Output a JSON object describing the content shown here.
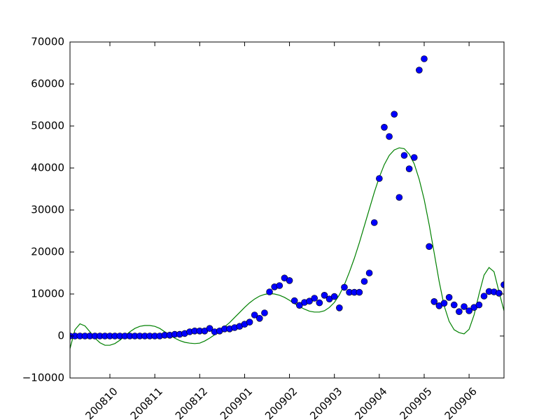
{
  "chart_data": {
    "type": "scatter",
    "x": [
      0,
      1,
      2,
      3,
      4,
      5,
      6,
      7,
      8,
      9,
      10,
      11,
      12,
      13,
      14,
      15,
      16,
      17,
      18,
      19,
      20,
      21,
      22,
      23,
      24,
      25,
      26,
      27,
      28,
      29,
      30,
      31,
      32,
      33,
      34,
      35,
      36,
      37,
      38,
      39,
      40,
      41,
      42,
      43,
      44,
      45,
      46,
      47,
      48,
      49,
      50,
      51,
      52,
      53,
      54,
      55,
      56,
      57,
      58,
      59,
      60,
      61,
      62,
      63,
      64,
      65,
      66,
      67,
      68,
      69,
      70,
      71,
      72,
      73,
      74,
      75,
      76,
      77,
      78,
      79,
      80,
      81,
      82,
      83,
      84,
      85,
      86,
      87
    ],
    "series": [
      {
        "type": "scatter",
        "color": "#0000ff",
        "values": [
          0,
          0,
          0,
          0,
          0,
          0,
          0,
          0,
          0,
          0,
          0,
          0,
          0,
          0,
          0,
          0,
          0,
          0,
          0,
          200,
          200,
          400,
          400,
          600,
          1000,
          1200,
          1200,
          1200,
          1800,
          1000,
          1200,
          1700,
          1700,
          2000,
          2300,
          2800,
          3300,
          5000,
          4200,
          5500,
          10500,
          11700,
          12000,
          13800,
          13200,
          8400,
          7300,
          8000,
          8300,
          9000,
          7900,
          9700,
          8800,
          9400,
          6700,
          11600,
          10400,
          10400,
          10400,
          13000,
          15000,
          27000,
          37500,
          49700,
          47500,
          52800,
          33000,
          43000,
          39800,
          42500,
          63300,
          66000,
          21300,
          8200,
          7200,
          7800,
          9200,
          7400,
          5800,
          7000,
          6000,
          6800,
          7400,
          9500,
          10600,
          10500,
          10200,
          12200
        ]
      },
      {
        "type": "line",
        "color": "#008000",
        "values": [
          -3000,
          1500,
          2900,
          2400,
          1000,
          -500,
          -1600,
          -2200,
          -2200,
          -1800,
          -1000,
          0,
          1000,
          1800,
          2300,
          2500,
          2500,
          2300,
          1800,
          1000,
          200,
          -500,
          -1100,
          -1500,
          -1700,
          -1800,
          -1700,
          -1200,
          -500,
          300,
          1200,
          2200,
          3200,
          4400,
          5600,
          6800,
          7900,
          8800,
          9500,
          9900,
          10100,
          10000,
          9700,
          9200,
          8500,
          7700,
          7000,
          6400,
          5900,
          5700,
          5700,
          6000,
          6800,
          8000,
          9800,
          12200,
          15200,
          18500,
          22200,
          26200,
          30200,
          34200,
          37800,
          40800,
          43000,
          44300,
          44800,
          44600,
          43300,
          41000,
          37300,
          32500,
          26500,
          19800,
          13000,
          7200,
          3500,
          1500,
          800,
          500,
          1600,
          5000,
          10000,
          14500,
          16300,
          15300,
          10500,
          6000
        ]
      }
    ],
    "xlim": [
      0,
      87
    ],
    "xticks": [
      {
        "value": 8,
        "label": "200810"
      },
      {
        "value": 17,
        "label": "200811"
      },
      {
        "value": 26,
        "label": "200812"
      },
      {
        "value": 35,
        "label": "200901"
      },
      {
        "value": 44,
        "label": "200902"
      },
      {
        "value": 53,
        "label": "200903"
      },
      {
        "value": 62,
        "label": "200904"
      },
      {
        "value": 71,
        "label": "200905"
      },
      {
        "value": 80,
        "label": "200906"
      }
    ],
    "ylim": [
      -10000,
      70000
    ],
    "yticks": [
      {
        "value": -10000,
        "label": "−10000"
      },
      0,
      10000,
      20000,
      30000,
      40000,
      50000,
      60000,
      70000
    ]
  }
}
